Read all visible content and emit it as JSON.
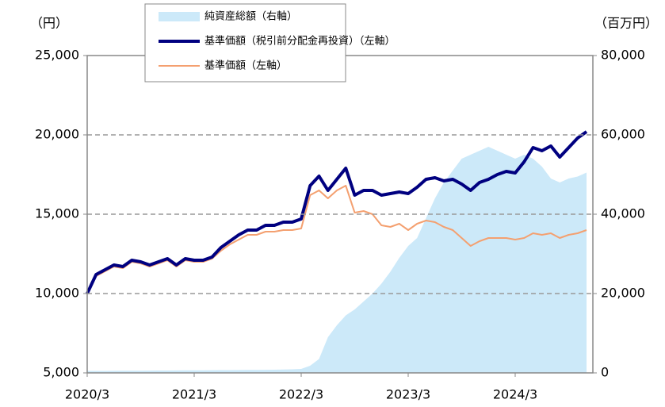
{
  "chart_data": {
    "type": "line",
    "y_label": "（円）",
    "y2_label": "（百万円）",
    "categories": [
      "2020/3",
      null,
      null,
      null,
      null,
      null,
      null,
      null,
      null,
      null,
      null,
      null,
      "2021/3",
      null,
      null,
      null,
      null,
      null,
      null,
      null,
      null,
      null,
      null,
      null,
      "2022/3",
      null,
      null,
      null,
      null,
      null,
      null,
      null,
      null,
      null,
      null,
      null,
      "2023/3",
      null,
      null,
      null,
      null,
      null,
      null,
      null,
      null,
      null,
      null,
      null,
      "2024/3",
      null,
      null,
      null,
      null,
      null,
      null,
      null,
      null
    ],
    "series": [
      {
        "name": "純資産総額（右軸）",
        "color": "#cce9f9",
        "axis": "y2",
        "kind": "area",
        "values": [
          500,
          500,
          500,
          520,
          540,
          560,
          560,
          580,
          600,
          600,
          620,
          640,
          650,
          660,
          680,
          700,
          700,
          720,
          740,
          760,
          780,
          800,
          850,
          900,
          1000,
          1800,
          3500,
          9000,
          12000,
          14500,
          16000,
          18000,
          20000,
          22500,
          25500,
          29000,
          32000,
          34000,
          39000,
          44000,
          48000,
          51000,
          54000,
          55000,
          56000,
          57000,
          56000,
          55000,
          54000,
          55000,
          54000,
          52000,
          49000,
          48000,
          49000,
          49500,
          50500
        ]
      },
      {
        "name": "基準価額（税引前分配金再投資）（左軸）",
        "color": "#000080",
        "kind": "line",
        "values": [
          10000,
          11200,
          11500,
          11800,
          11700,
          12100,
          12000,
          11800,
          12000,
          12200,
          11800,
          12200,
          12100,
          12100,
          12300,
          12900,
          13300,
          13700,
          14000,
          14000,
          14300,
          14300,
          14500,
          14500,
          14700,
          16800,
          17400,
          16500,
          17200,
          17900,
          16200,
          16500,
          16500,
          16200,
          16300,
          16400,
          16300,
          16700,
          17200,
          17300,
          17100,
          17200,
          16900,
          16500,
          17000,
          17200,
          17500,
          17700,
          17600,
          18300,
          19200,
          19000,
          19300,
          18600,
          19200,
          19800,
          20200
        ]
      },
      {
        "name": "基準価額（左軸）",
        "color": "#f4a070",
        "kind": "line",
        "values": [
          10000,
          11100,
          11400,
          11700,
          11600,
          12000,
          11900,
          11700,
          11900,
          12100,
          11700,
          12100,
          12000,
          12000,
          12200,
          12700,
          13100,
          13400,
          13700,
          13700,
          13900,
          13900,
          14000,
          14000,
          14100,
          16200,
          16500,
          16000,
          16500,
          16800,
          15100,
          15200,
          15000,
          14300,
          14200,
          14400,
          14000,
          14400,
          14600,
          14500,
          14200,
          14000,
          13500,
          13000,
          13300,
          13500,
          13500,
          13500,
          13400,
          13500,
          13800,
          13700,
          13800,
          13500,
          13700,
          13800,
          14000
        ]
      }
    ],
    "ylim": [
      5000,
      25000
    ],
    "yticks": [
      {
        "value": 5000,
        "label": "5,000"
      },
      {
        "value": 10000,
        "label": "10,000"
      },
      {
        "value": 15000,
        "label": "15,000"
      },
      {
        "value": 20000,
        "label": "20,000"
      },
      {
        "value": 25000,
        "label": "25,000"
      }
    ],
    "y2lim": [
      0,
      80000
    ],
    "y2ticks": [
      0,
      {
        "value": 20000,
        "label": "20,000"
      },
      {
        "value": 40000,
        "label": "40,000"
      },
      {
        "value": 60000,
        "label": "60,000"
      },
      {
        "value": 80000,
        "label": "80,000"
      }
    ],
    "grid": true
  }
}
